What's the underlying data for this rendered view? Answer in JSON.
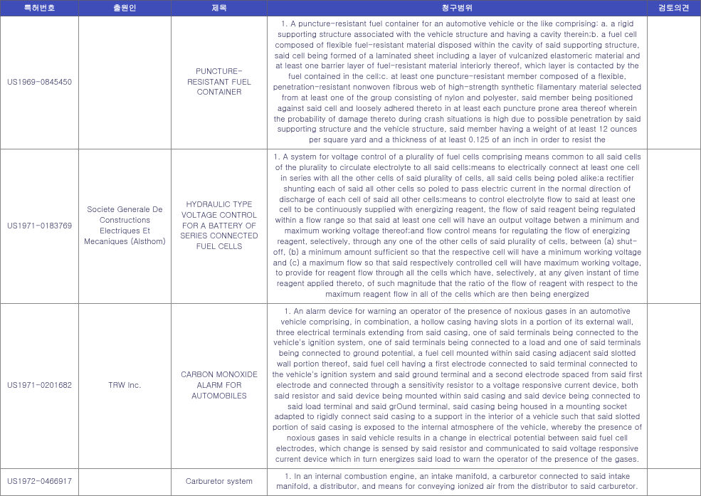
{
  "headers": {
    "patent_no": "특허번호",
    "applicant": "출원인",
    "title": "제목",
    "claim": "청구범위",
    "review": "검토의견"
  },
  "rows": [
    {
      "patent_no": "US1969-0845450",
      "applicant": "",
      "title": "PUNCTURE-RESISTANT FUEL CONTAINER",
      "claim": "1. A puncture-resistant fuel container for an automotive vehicle or the like comprising: a. a rigid supporting structure associated with the vehicle structure and having a cavity therein;b. a fuel cell composed of flexible fuel-resistant material disposed within the cavity of said supporting structure, said cell being formed of a laminated sheet including a layer of vulcanized elastomeric material and at least one barrier layer of fuel-resistant material interiorly thereof, which layer is contacted by the fuel contained in the cell;c. at least one puncture-resistant member composed of a flexible, penetration-resistant nonwoven fibrous web of high-strength synthetic filamentary material selected from at least one of the group consisting of nylon and polyester, said member being positioned against said cell and loosely adhered thereto in at least each puncture prone area thereof wherein the probability of damage thereto during crash situations is high due to possible penetration by said supporting structure and the vehicle structure, said member having a weight of at least 12 ounces per square yard and a thickness of at least 0.125 of an inch in order to resist the",
      "review": ""
    },
    {
      "patent_no": "US1971-0183769",
      "applicant": "Societe Generale De Constructions Electriques Et Mecaniques (Alsthom)",
      "title": "HYDRAULIC TYPE VOLTAGE CONTROL FOR A BATTERY OF SERIES CONNECTED FUEL CELLS",
      "claim": "1. A system for voltage control of a plurality of fuel cells comprising means common to all said cells of the plurality to circulate electrolyte to all said cells;means to electrically connect at least one cell in series with all the other cells of said plurality of cells, all said cells being poled alike;a rectifier shunting each of said all other cells so poled to pass electric current in the normal direction of discharge of each cell of said all other cells;means to control electrolyte flow to said at least one cell to be continuously supplied with energizing reagent, the flow of said reagent being regulated within a flow range so that said at least one cell will have an output voltage betwen a minimum and maximum working voltage thereof;and flow control means for regulating the flow of energizing reagent, selectively, through any one of the other cells of said plurality of cells, between (a) shut-off, (b) a minimum amount sufficient so that the respective cell will have a minimum working voltage and (c) a maximum flow so that said respectively controlled cell will have maximum working voltage, to provide for reagent flow through all the cells which have, selectively, at any given instant of time reagent applied thereto, of such magnitude that the ratio of the flow of reagent with respect to the maximum reagent flow in all of the cells which are then being energized",
      "review": ""
    },
    {
      "patent_no": "US1971-0201682",
      "applicant": "TRW Inc.",
      "title": "CARBON MONOXIDE ALARM FOR AUTOMOBILES",
      "claim": "1. An alarm device for warning an operator of the presence of noxious gases in an automotive vehicle comprising, in combination, a hollow casing having slots in a portion of its external wall, three electrical terminals extending from said casing, one of said terminals being connected to the vehicle's ignition system, one of said terminals being connected to a load and one of said terminals being connected to ground potential, a fuel cell mounted within said casing adjacent said slotted wall portion thereof, said fuel cell having a first electrode connected to said terminal connected to the vehicle's ignition system and said ground terminal and a second electrode spaced from said first electrode and connected through a sensitivity resistor to a voltage responsive current device, both said resistor and said device being mounted within said casing and said device being connected to said load terminal and said grOund terminal, said casing being housed in a mounting socket adapted to rigidly connect said casing to a support in the interior of a vehicle such that said slotted portion of said casing is exposed to the internal atmosphere of the vehicle, whereby the presence of noxious gases in said vehicle results in a change in electrical potential between said fuel cell electrodes, which change is sensed by said resistor and communicated to said voltage responsive current device which in turn energizes said load to warn the operator of the presence of the gases.",
      "review": ""
    },
    {
      "patent_no": "US1972-0466917",
      "applicant": "",
      "title": "Carburetor system",
      "claim": "1. In an internal combustion engine, an intake manifold, a carburetor connected to said intake manifold, a distributor, and means for conveying ionized air from the distributor to said carburetor.",
      "review": ""
    }
  ]
}
